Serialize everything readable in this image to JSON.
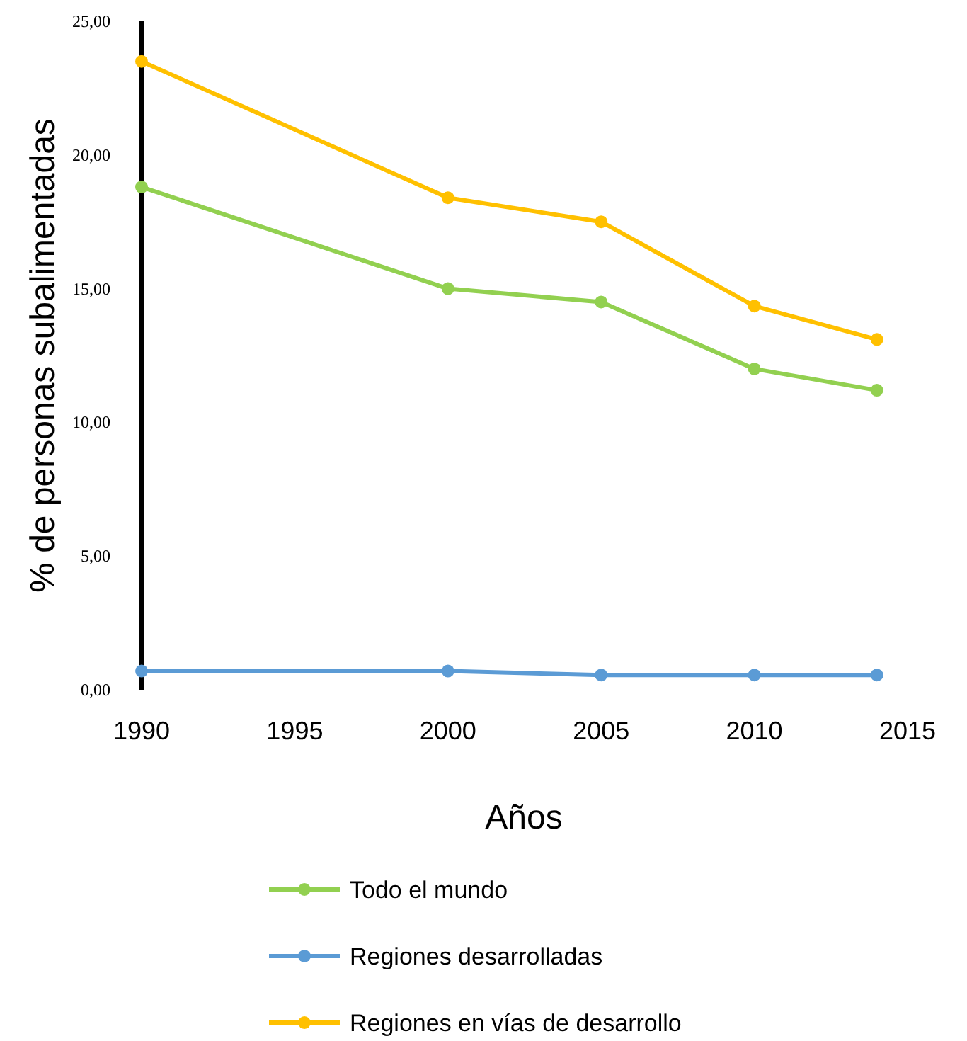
{
  "chart_data": {
    "type": "line",
    "xlabel": "Años",
    "ylabel": "% de personas subalimentadas",
    "x": [
      1990,
      2000,
      2005,
      2010,
      2014
    ],
    "series": [
      {
        "name": "Todo el mundo",
        "color": "#92d050",
        "values": [
          18.8,
          15.0,
          14.5,
          12.0,
          11.2
        ]
      },
      {
        "name": "Regiones desarrolladas",
        "color": "#5b9bd5",
        "values": [
          0.7,
          0.7,
          0.55,
          0.55,
          0.55
        ]
      },
      {
        "name": "Regiones en vías de desarrollo",
        "color": "#ffc000",
        "values": [
          23.5,
          18.4,
          17.5,
          14.35,
          13.1
        ]
      }
    ],
    "xlim": [
      1990,
      2015
    ],
    "xticks": [
      1990,
      1995,
      2000,
      2005,
      2010,
      2015
    ],
    "ylim": [
      0,
      25
    ],
    "yticks": [
      {
        "value": 0,
        "label": "0,00"
      },
      {
        "value": 5,
        "label": "5,00"
      },
      {
        "value": 10,
        "label": "10,00"
      },
      {
        "value": 15,
        "label": "15,00"
      },
      {
        "value": 20,
        "label": "20,00"
      },
      {
        "value": 25,
        "label": "25,00"
      }
    ],
    "grid": false,
    "legend": "bottom",
    "marker": "circle",
    "line_style": "solid"
  }
}
